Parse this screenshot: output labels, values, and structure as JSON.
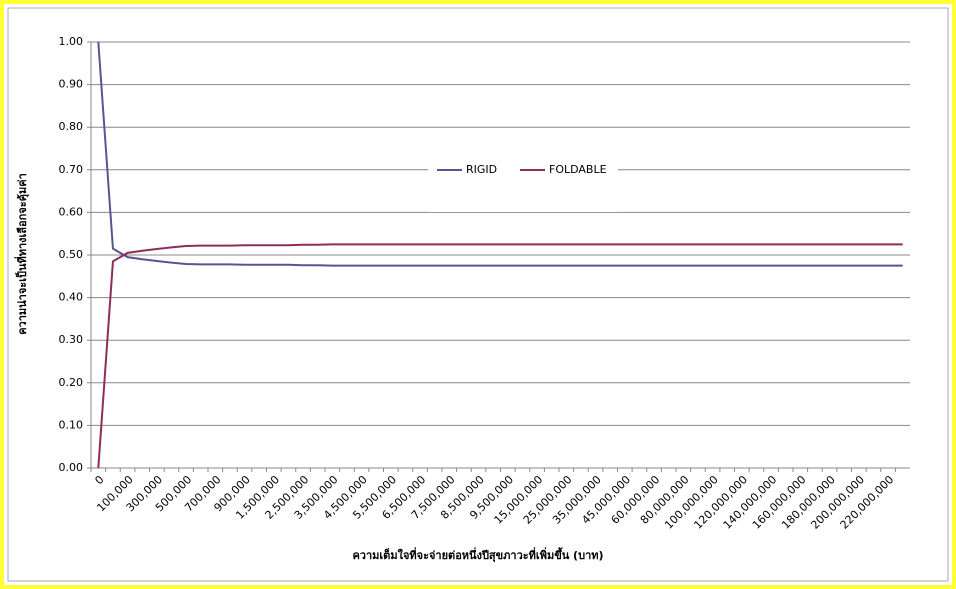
{
  "chart_data": {
    "type": "line",
    "y_label": "ความน่าจะเป็นที่ทางเลือกจะคุ้มค่า",
    "x_label": "ความเต็มใจที่จะจ่ายต่อหนึ่งปีสุขภาวะที่เพิ่มขึ้น (บาท)",
    "categories": [
      "0",
      null,
      "100,000",
      null,
      "300,000",
      null,
      "500,000",
      null,
      "700,000",
      null,
      "900,000",
      null,
      "1,500,000",
      null,
      "2,500,000",
      null,
      "3,500,000",
      null,
      "4,500,000",
      null,
      "5,500,000",
      null,
      "6,500,000",
      null,
      "7,500,000",
      null,
      "8,500,000",
      null,
      "9,500,000",
      null,
      "15,000,000",
      null,
      "25,000,000",
      null,
      "35,000,000",
      null,
      "45,000,000",
      null,
      "60,000,000",
      null,
      "80,000,000",
      null,
      "100,000,000",
      null,
      "120,000,000",
      null,
      "140,000,000",
      null,
      "160,000,000",
      null,
      "180,000,000",
      null,
      "200,000,000",
      null,
      "220,000,000",
      null
    ],
    "series": [
      {
        "name": "RIGID",
        "color": "#56568f",
        "values": [
          1.0,
          0.515,
          0.495,
          0.49,
          0.486,
          0.482,
          0.479,
          0.478,
          0.478,
          0.478,
          0.477,
          0.477,
          0.477,
          0.477,
          0.476,
          0.476,
          0.475,
          0.475,
          0.475,
          0.475,
          0.475,
          0.475,
          0.475,
          0.475,
          0.475,
          0.475,
          0.475,
          0.475,
          0.475,
          0.475,
          0.475,
          0.475,
          0.475,
          0.475,
          0.475,
          0.475,
          0.475,
          0.475,
          0.475,
          0.475,
          0.475,
          0.475,
          0.475,
          0.475,
          0.475,
          0.475,
          0.475,
          0.475,
          0.475,
          0.475,
          0.475,
          0.475,
          0.475,
          0.475,
          0.475,
          0.475
        ]
      },
      {
        "name": "FOLDABLE",
        "color": "#8e2c5e",
        "values": [
          0,
          0.485,
          0.505,
          0.51,
          0.514,
          0.518,
          0.521,
          0.522,
          0.522,
          0.522,
          0.523,
          0.523,
          0.523,
          0.523,
          0.524,
          0.524,
          0.525,
          0.525,
          0.525,
          0.525,
          0.525,
          0.525,
          0.525,
          0.525,
          0.525,
          0.525,
          0.525,
          0.525,
          0.525,
          0.525,
          0.525,
          0.525,
          0.525,
          0.525,
          0.525,
          0.525,
          0.525,
          0.525,
          0.525,
          0.525,
          0.525,
          0.525,
          0.525,
          0.525,
          0.525,
          0.525,
          0.525,
          0.525,
          0.525,
          0.525,
          0.525,
          0.525,
          0.525,
          0.525,
          0.525,
          0.525
        ]
      }
    ],
    "ylim": [
      0,
      1
    ],
    "yticks": [
      {
        "value": 0,
        "label": "0.00"
      },
      {
        "value": 0.1,
        "label": "0.10"
      },
      {
        "value": 0.2,
        "label": "0.20"
      },
      {
        "value": 0.3,
        "label": "0.30"
      },
      {
        "value": 0.4,
        "label": "0.40"
      },
      {
        "value": 0.5,
        "label": "0.50"
      },
      {
        "value": 0.6,
        "label": "0.60"
      },
      {
        "value": 0.7,
        "label": "0.70"
      },
      {
        "value": 0.8,
        "label": "0.80"
      },
      {
        "value": 0.9,
        "label": "0.90"
      },
      {
        "value": 1,
        "label": "1.00"
      }
    ],
    "grid": true,
    "legend": "center"
  }
}
